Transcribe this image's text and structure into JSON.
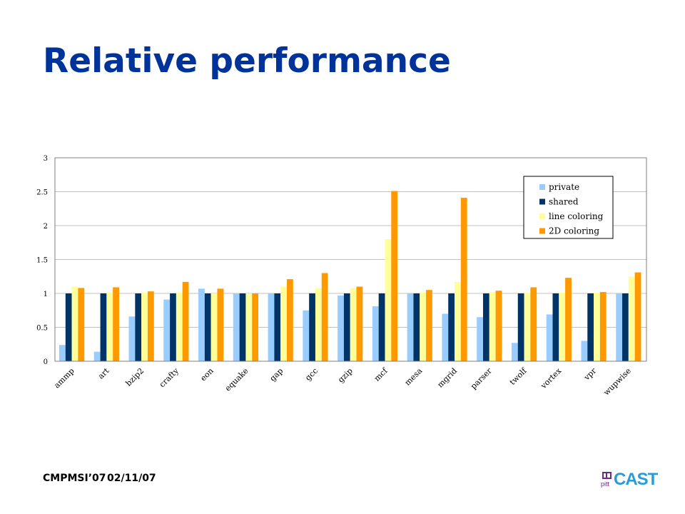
{
  "slide": {
    "title": "Relative performance",
    "footer_left": "CMPMSI’07",
    "footer_date": "02/11/07",
    "logo_text": "CAST",
    "logo_small": "pitt"
  },
  "colors": {
    "private": "#99ccff",
    "shared": "#003366",
    "line_coloring": "#ffff99",
    "coloring_2d": "#ff9900",
    "gridline": "#c0c0c0",
    "title": "#003399"
  },
  "chart_data": {
    "type": "bar",
    "categories": [
      "ammp",
      "art",
      "bzip2",
      "crafty",
      "eon",
      "equake",
      "gap",
      "gcc",
      "gzip",
      "mcf",
      "mesa",
      "mgrid",
      "parser",
      "twolf",
      "vortex",
      "vpr",
      "wupwise"
    ],
    "series": [
      {
        "name": "private",
        "color": "#99ccff",
        "values": [
          0.24,
          0.14,
          0.66,
          0.91,
          1.07,
          1.0,
          1.0,
          0.75,
          0.97,
          0.81,
          1.0,
          0.7,
          0.65,
          0.27,
          0.69,
          0.3,
          1.0
        ]
      },
      {
        "name": "shared",
        "color": "#003366",
        "values": [
          1.0,
          1.0,
          1.0,
          1.0,
          1.0,
          1.0,
          1.0,
          1.0,
          1.0,
          1.0,
          1.0,
          1.0,
          1.0,
          1.0,
          1.0,
          1.0,
          1.0
        ]
      },
      {
        "name": "line coloring",
        "color": "#ffff99",
        "values": [
          1.1,
          1.02,
          1.01,
          1.01,
          1.0,
          1.0,
          1.1,
          1.08,
          1.08,
          1.8,
          1.01,
          1.17,
          1.02,
          1.01,
          1.01,
          1.01,
          1.25
        ]
      },
      {
        "name": "2D coloring",
        "color": "#ff9900",
        "values": [
          1.08,
          1.09,
          1.03,
          1.17,
          1.07,
          1.0,
          1.21,
          1.3,
          1.1,
          2.51,
          1.05,
          2.41,
          1.04,
          1.09,
          1.23,
          1.02,
          1.31
        ]
      }
    ],
    "yticks": [
      "0",
      "0.5",
      "1",
      "1.5",
      "2",
      "2.5",
      "3"
    ],
    "ylim": [
      0,
      3
    ],
    "grid": true,
    "legend_position": "top-right"
  }
}
